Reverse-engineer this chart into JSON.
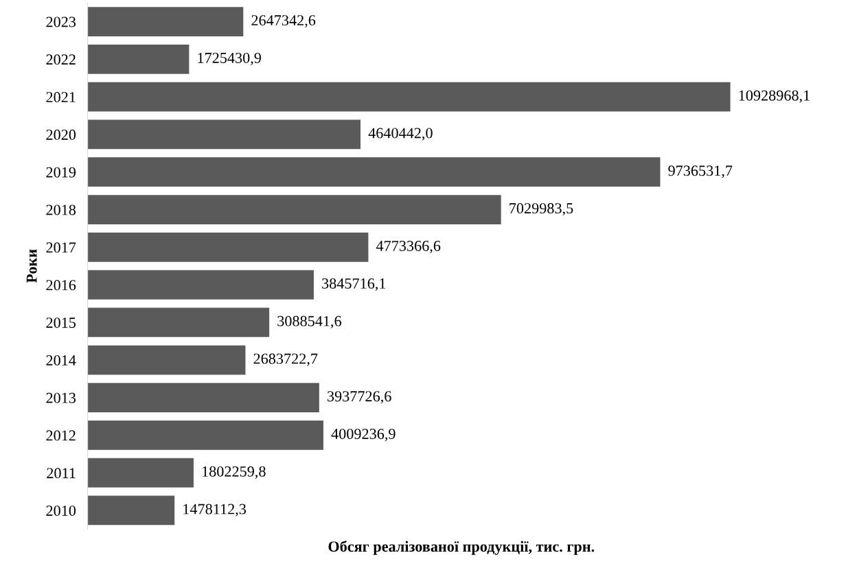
{
  "chart_data": {
    "type": "bar",
    "orientation": "horizontal",
    "xlabel": "Обсяг реалізованої продукції, тис. грн.",
    "ylabel": "Роки",
    "categories": [
      "2023",
      "2022",
      "2021",
      "2020",
      "2019",
      "2018",
      "2017",
      "2016",
      "2015",
      "2014",
      "2013",
      "2012",
      "2011",
      "2010"
    ],
    "values": [
      2647342.6,
      1725430.9,
      10928968.1,
      4640442.0,
      9736531.7,
      7029983.5,
      4773366.6,
      3845716.1,
      3088541.6,
      2683722.7,
      3937726.6,
      4009236.9,
      1802259.8,
      1478112.3
    ],
    "value_labels": [
      "2647342,6",
      "1725430,9",
      "10928968,1",
      "4640442,0",
      "9736531,7",
      "7029983,5",
      "4773366,6",
      "3845716,1",
      "3088541,6",
      "2683722,7",
      "3937726,6",
      "4009236,9",
      "1802259,8",
      "1478112,3"
    ],
    "color": "#5a5a5a",
    "tick_labels": "y",
    "grid": false
  }
}
